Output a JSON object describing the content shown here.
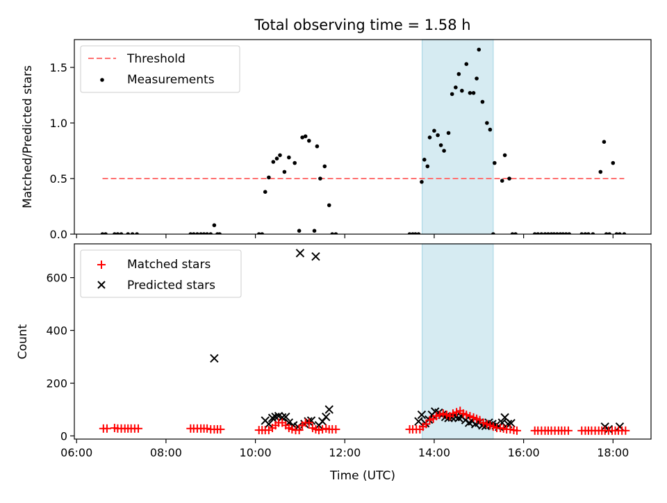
{
  "chart_data": {
    "type": "scatter",
    "title": "Total observing time = 1.58 h",
    "xlabel": "Time (UTC)",
    "x_unit": "hours UTC",
    "xlim": [
      5.95,
      18.85
    ],
    "x_ticks": [
      {
        "value": 6,
        "label": "06:00"
      },
      {
        "value": 8,
        "label": "08:00"
      },
      {
        "value": 10,
        "label": "10:00"
      },
      {
        "value": 12,
        "label": "12:00"
      },
      {
        "value": 14,
        "label": "14:00"
      },
      {
        "value": 16,
        "label": "16:00"
      },
      {
        "value": 18,
        "label": "18:00"
      }
    ],
    "shaded_interval": {
      "x_start": 13.73,
      "x_end": 15.32,
      "color": "#add8e6"
    },
    "panels": [
      {
        "id": "ratio",
        "ylabel": "Matched/Predicted stars",
        "ylim": [
          0,
          1.75
        ],
        "y_ticks": [
          {
            "value": 0.0,
            "label": "0.0"
          },
          {
            "value": 0.5,
            "label": "0.5"
          },
          {
            "value": 1.0,
            "label": "1.0"
          },
          {
            "value": 1.5,
            "label": "1.5"
          }
        ],
        "legend_position": "upper left",
        "threshold": {
          "name": "Threshold",
          "value": 0.5,
          "x_range": [
            6.58,
            18.25
          ],
          "color": "#ff7070"
        },
        "measurements": {
          "name": "Measurements",
          "color": "#000000",
          "x": [
            6.58,
            6.65,
            6.85,
            6.92,
            7.0,
            7.15,
            7.25,
            7.35,
            8.55,
            8.62,
            8.7,
            8.78,
            8.85,
            8.92,
            9.0,
            9.08,
            9.15,
            9.2,
            10.08,
            10.15,
            10.22,
            10.3,
            10.4,
            10.48,
            10.55,
            10.65,
            10.75,
            10.88,
            10.98,
            11.05,
            11.12,
            11.2,
            11.32,
            11.38,
            11.45,
            11.55,
            11.65,
            11.72,
            11.8,
            13.45,
            13.52,
            13.58,
            13.65,
            13.72,
            13.78,
            13.85,
            13.9,
            14.0,
            14.08,
            14.15,
            14.22,
            14.32,
            14.4,
            14.48,
            14.55,
            14.62,
            14.72,
            14.8,
            14.88,
            14.95,
            15.0,
            15.08,
            15.18,
            15.25,
            15.32,
            15.35,
            15.52,
            15.58,
            15.68,
            15.75,
            15.82,
            16.25,
            16.32,
            16.4,
            16.48,
            16.55,
            16.62,
            16.68,
            16.75,
            16.82,
            16.88,
            16.95,
            17.02,
            17.3,
            17.38,
            17.45,
            17.55,
            17.72,
            17.8,
            17.85,
            17.92,
            18.0,
            18.08,
            18.15,
            18.25
          ],
          "y": [
            0,
            0,
            0,
            0,
            0,
            0,
            0,
            0,
            0,
            0,
            0,
            0,
            0,
            0,
            0,
            0.08,
            0,
            0,
            0,
            0,
            0.38,
            0.51,
            0.65,
            0.68,
            0.71,
            0.56,
            0.69,
            0.64,
            0.03,
            0.87,
            0.88,
            0.84,
            0.03,
            0.79,
            0.5,
            0.61,
            0.26,
            0,
            0,
            0,
            0,
            0,
            0,
            0.47,
            0.67,
            0.61,
            0.87,
            0.93,
            0.89,
            0.8,
            0.75,
            0.91,
            1.26,
            1.32,
            1.44,
            1.29,
            1.53,
            1.27,
            1.27,
            1.4,
            1.66,
            1.19,
            1.0,
            0.94,
            0.0,
            0.64,
            0.48,
            0.71,
            0.5,
            0,
            0,
            0,
            0,
            0,
            0,
            0,
            0,
            0,
            0,
            0,
            0,
            0,
            0,
            0,
            0,
            0,
            0,
            0.56,
            0.83,
            0,
            0,
            0.64,
            0,
            0,
            0
          ]
        }
      },
      {
        "id": "counts",
        "ylabel": "Count",
        "ylim": [
          -12,
          728
        ],
        "y_ticks": [
          {
            "value": 0,
            "label": "0"
          },
          {
            "value": 200,
            "label": "200"
          },
          {
            "value": 400,
            "label": "400"
          },
          {
            "value": 600,
            "label": "600"
          }
        ],
        "legend_position": "upper left",
        "series": [
          {
            "name": "Matched stars",
            "marker": "plus",
            "color": "#ff0000",
            "x": [
              6.6,
              6.68,
              6.85,
              6.92,
              7.0,
              7.08,
              7.15,
              7.22,
              7.3,
              7.38,
              8.55,
              8.62,
              8.7,
              8.78,
              8.85,
              8.92,
              9.0,
              9.08,
              9.15,
              9.22,
              10.08,
              10.15,
              10.22,
              10.3,
              10.38,
              10.45,
              10.52,
              10.6,
              10.68,
              10.75,
              10.82,
              10.9,
              10.98,
              11.05,
              11.12,
              11.2,
              11.28,
              11.35,
              11.42,
              11.5,
              11.58,
              11.65,
              11.72,
              11.8,
              13.45,
              13.52,
              13.6,
              13.68,
              13.75,
              13.82,
              13.9,
              13.98,
              14.05,
              14.12,
              14.2,
              14.28,
              14.35,
              14.42,
              14.5,
              14.58,
              14.65,
              14.72,
              14.8,
              14.88,
              14.95,
              15.02,
              15.1,
              15.18,
              15.25,
              15.32,
              15.4,
              15.48,
              15.55,
              15.62,
              15.7,
              15.78,
              15.85,
              16.25,
              16.32,
              16.4,
              16.48,
              16.55,
              16.62,
              16.7,
              16.78,
              16.85,
              16.92,
              17.0,
              17.3,
              17.38,
              17.45,
              17.52,
              17.6,
              17.68,
              17.75,
              17.82,
              17.9,
              17.98,
              18.05,
              18.12,
              18.2,
              18.28
            ],
            "y": [
              28,
              28,
              30,
              28,
              28,
              28,
              28,
              28,
              28,
              28,
              28,
              28,
              28,
              28,
              28,
              28,
              25,
              25,
              25,
              25,
              22,
              22,
              22,
              22,
              30,
              40,
              50,
              50,
              40,
              30,
              25,
              22,
              22,
              40,
              50,
              50,
              30,
              25,
              22,
              25,
              28,
              25,
              25,
              25,
              25,
              25,
              25,
              25,
              35,
              45,
              60,
              65,
              75,
              80,
              85,
              80,
              75,
              85,
              90,
              95,
              85,
              80,
              75,
              70,
              65,
              60,
              50,
              45,
              40,
              35,
              30,
              30,
              28,
              25,
              25,
              22,
              20,
              20,
              20,
              20,
              20,
              20,
              20,
              20,
              20,
              20,
              20,
              20,
              20,
              20,
              20,
              20,
              20,
              20,
              20,
              20,
              20,
              20,
              20,
              20,
              20,
              20
            ]
          },
          {
            "name": "Predicted stars",
            "marker": "x",
            "color": "#000000",
            "x": [
              9.08,
              10.22,
              10.3,
              10.38,
              10.45,
              10.52,
              10.6,
              10.68,
              10.75,
              10.85,
              10.95,
              11.0,
              11.1,
              11.18,
              11.25,
              11.35,
              11.42,
              11.5,
              11.58,
              11.65,
              13.65,
              13.72,
              13.8,
              13.88,
              13.95,
              14.02,
              14.1,
              14.18,
              14.25,
              14.32,
              14.4,
              14.48,
              14.55,
              14.62,
              14.7,
              14.78,
              14.85,
              14.92,
              15.0,
              15.08,
              15.15,
              15.22,
              15.3,
              15.38,
              15.45,
              15.52,
              15.58,
              15.65,
              15.72,
              17.82,
              17.9,
              18.15
            ],
            "y": [
              294,
              58,
              45,
              68,
              72,
              75,
              70,
              72,
              50,
              40,
              35,
              693,
              45,
              55,
              58,
              680,
              40,
              55,
              72,
              100,
              55,
              80,
              48,
              62,
              80,
              92,
              88,
              80,
              72,
              68,
              70,
              72,
              68,
              72,
              60,
              50,
              55,
              45,
              50,
              40,
              38,
              50,
              45,
              40,
              35,
              50,
              70,
              45,
              48,
              35,
              25,
              35
            ]
          }
        ]
      }
    ]
  }
}
